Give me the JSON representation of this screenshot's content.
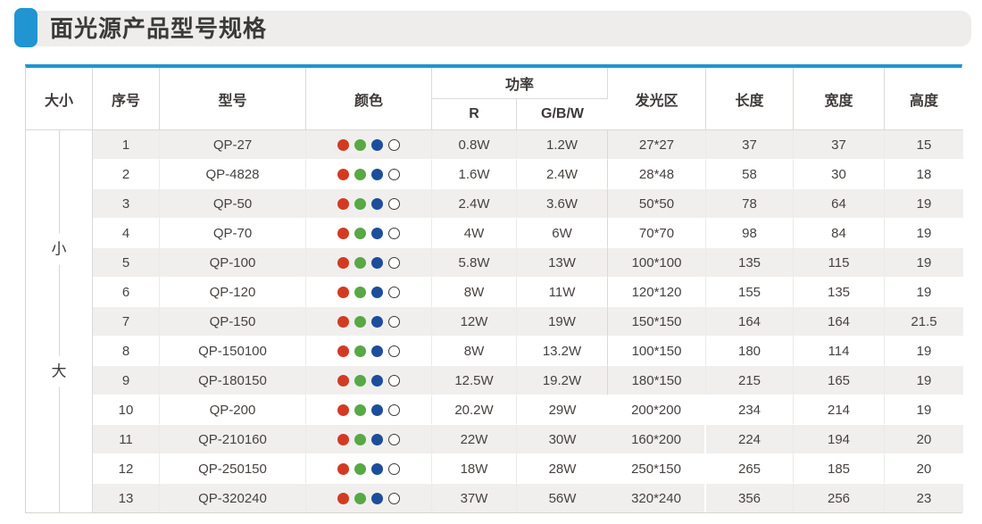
{
  "page": {
    "title": "面光源产品型号规格"
  },
  "colors": {
    "accent_blue": "#2095d2",
    "title_strip_bg": "#eeedeb",
    "stripe_bg": "#f0efee",
    "text": "#3e3a39",
    "dot_red": "#d23b22",
    "dot_green": "#58a846",
    "dot_blue": "#1c4e9b",
    "dot_white_outline": "#3e3a39"
  },
  "table": {
    "headers": {
      "size": "大小",
      "index": "序号",
      "model": "型号",
      "color": "颜色",
      "power": "功率",
      "power_r": "R",
      "power_gbw": "G/B/W",
      "emitting_area": "发光区",
      "length": "长度",
      "width": "宽度",
      "height": "高度"
    },
    "size_labels": {
      "small": "小",
      "large": "大"
    },
    "color_dots": [
      "red-dot",
      "green-dot",
      "blue-dot",
      "white-dot"
    ],
    "rows": [
      {
        "index": "1",
        "model": "QP-27",
        "power_r": "0.8W",
        "power_gbw": "1.2W",
        "area": "27*27",
        "length": "37",
        "width": "37",
        "height": "15"
      },
      {
        "index": "2",
        "model": "QP-4828",
        "power_r": "1.6W",
        "power_gbw": "2.4W",
        "area": "28*48",
        "length": "58",
        "width": "30",
        "height": "18"
      },
      {
        "index": "3",
        "model": "QP-50",
        "power_r": "2.4W",
        "power_gbw": "3.6W",
        "area": "50*50",
        "length": "78",
        "width": "64",
        "height": "19"
      },
      {
        "index": "4",
        "model": "QP-70",
        "power_r": "4W",
        "power_gbw": "6W",
        "area": "70*70",
        "length": "98",
        "width": "84",
        "height": "19"
      },
      {
        "index": "5",
        "model": "QP-100",
        "power_r": "5.8W",
        "power_gbw": "13W",
        "area": "100*100",
        "length": "135",
        "width": "115",
        "height": "19"
      },
      {
        "index": "6",
        "model": "QP-120",
        "power_r": "8W",
        "power_gbw": "11W",
        "area": "120*120",
        "length": "155",
        "width": "135",
        "height": "19"
      },
      {
        "index": "7",
        "model": "QP-150",
        "power_r": "12W",
        "power_gbw": "19W",
        "area": "150*150",
        "length": "164",
        "width": "164",
        "height": "21.5"
      },
      {
        "index": "8",
        "model": "QP-150100",
        "power_r": "8W",
        "power_gbw": "13.2W",
        "area": "100*150",
        "length": "180",
        "width": "114",
        "height": "19"
      },
      {
        "index": "9",
        "model": "QP-180150",
        "power_r": "12.5W",
        "power_gbw": "19.2W",
        "area": "180*150",
        "length": "215",
        "width": "165",
        "height": "19"
      },
      {
        "index": "10",
        "model": "QP-200",
        "power_r": "20.2W",
        "power_gbw": "29W",
        "area": "200*200",
        "length": "234",
        "width": "214",
        "height": "19"
      },
      {
        "index": "11",
        "model": "QP-210160",
        "power_r": "22W",
        "power_gbw": "30W",
        "area": "160*200",
        "length": "224",
        "width": "194",
        "height": "20"
      },
      {
        "index": "12",
        "model": "QP-250150",
        "power_r": "18W",
        "power_gbw": "28W",
        "area": "250*150",
        "length": "265",
        "width": "185",
        "height": "20"
      },
      {
        "index": "13",
        "model": "QP-320240",
        "power_r": "37W",
        "power_gbw": "56W",
        "area": "320*240",
        "length": "356",
        "width": "256",
        "height": "23"
      }
    ]
  }
}
